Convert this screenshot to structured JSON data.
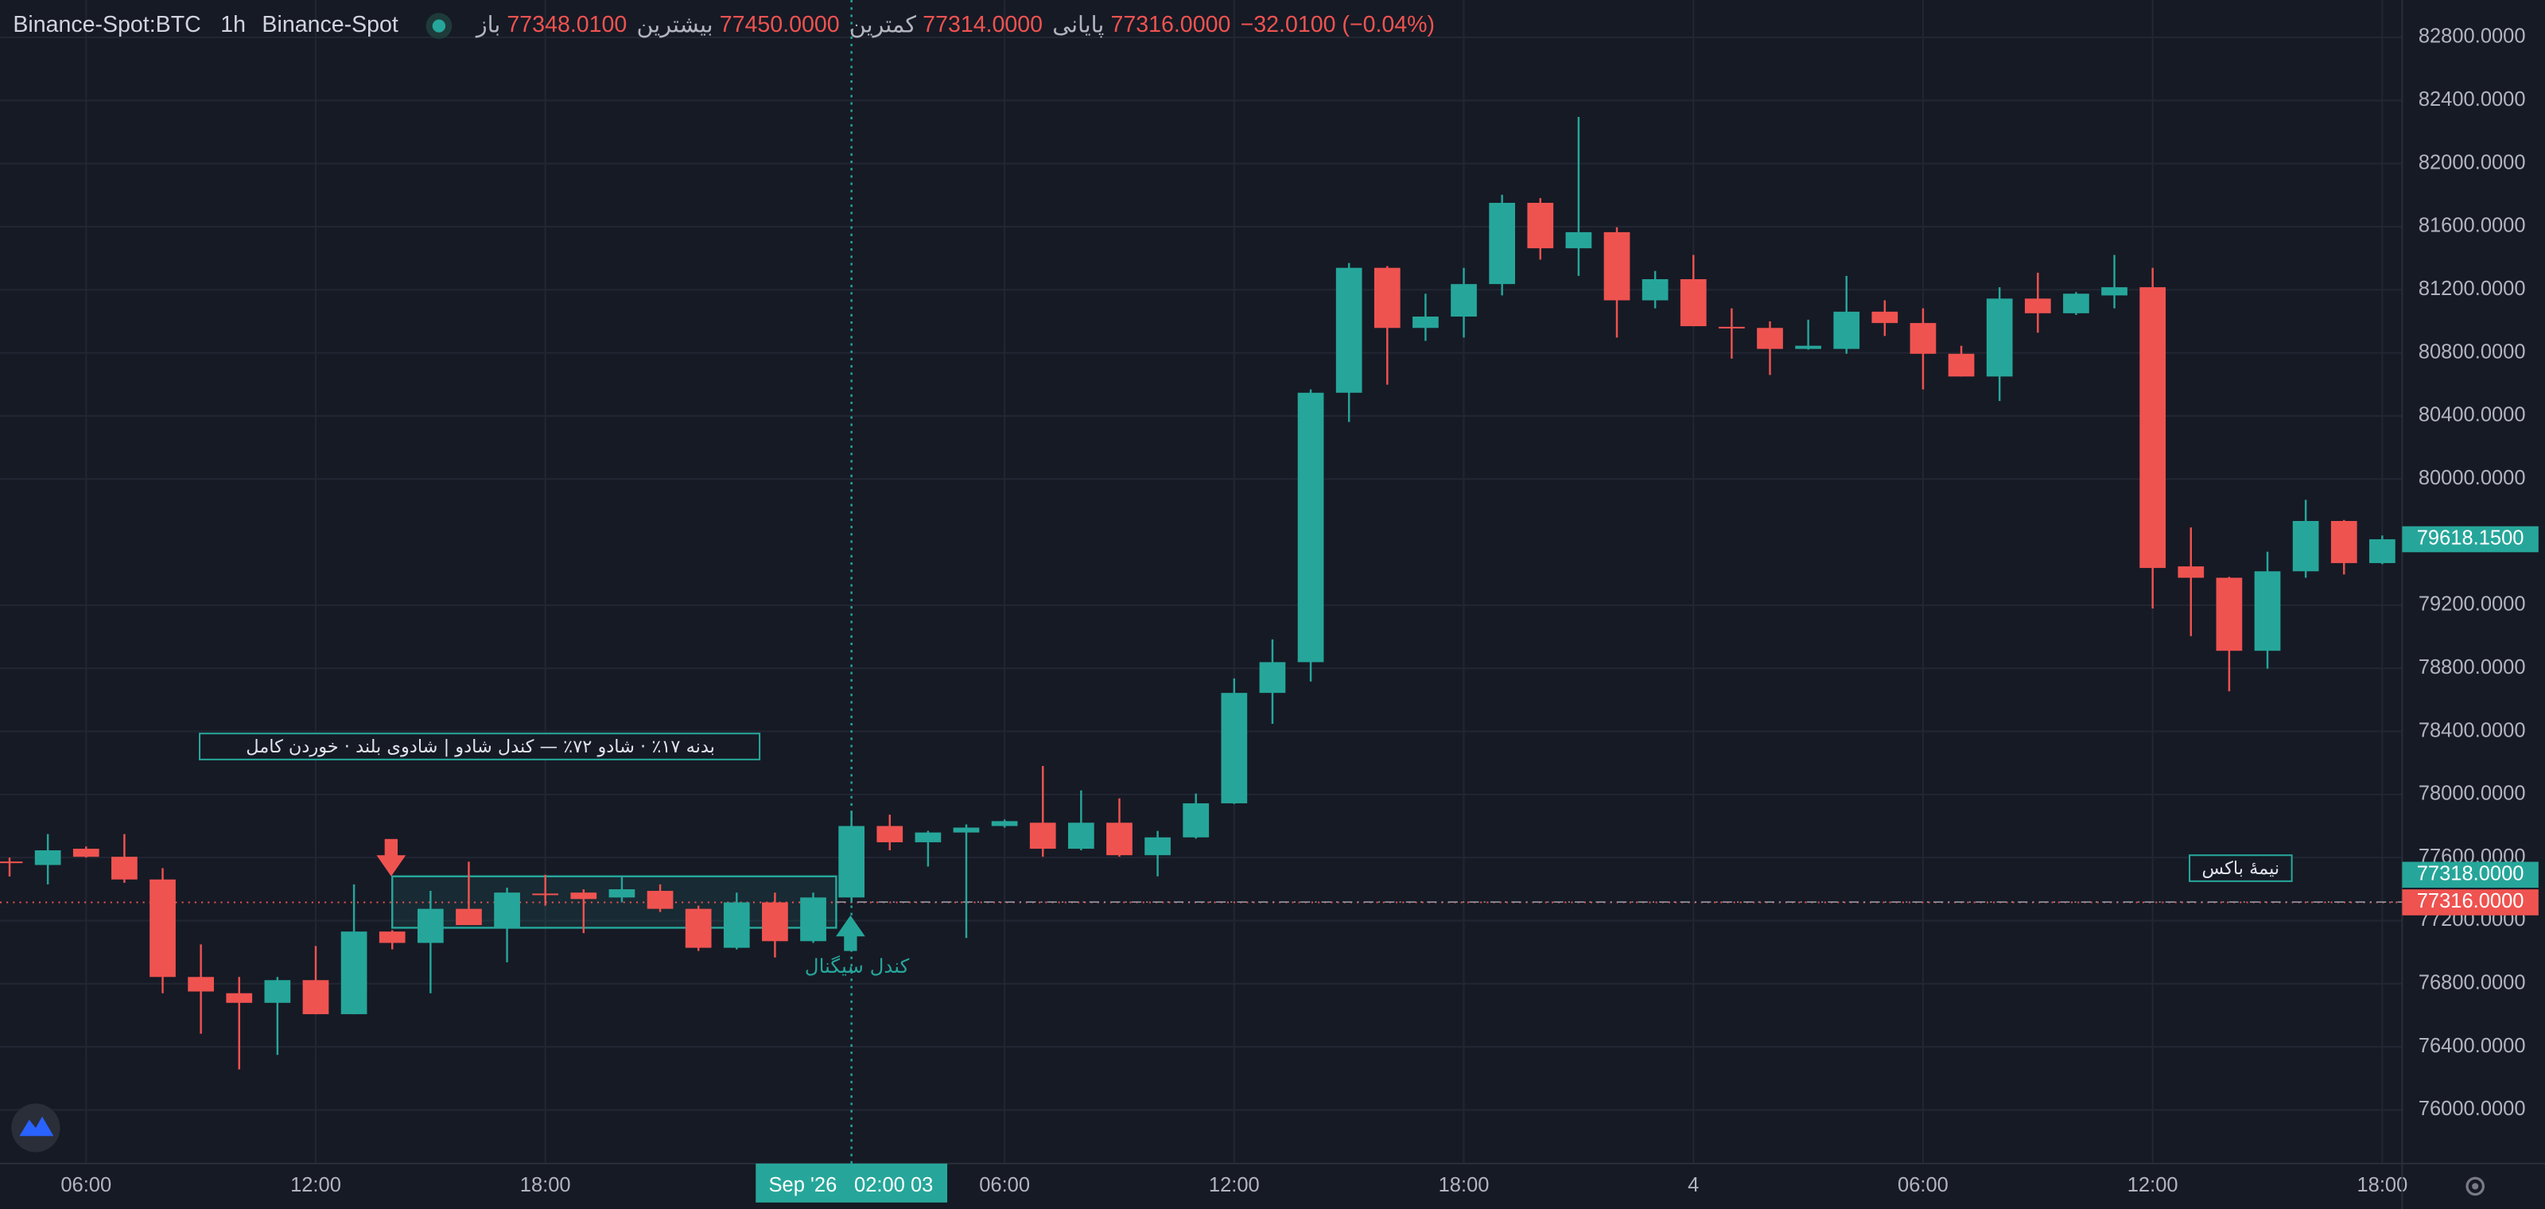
{
  "chart_data": {
    "type": "candlestick",
    "legend": {
      "symbol": "Binance-Spot:BTC",
      "interval": "1h",
      "exchange": "Binance-Spot",
      "items": [
        {
          "label": "باز",
          "value": "77348.0100"
        },
        {
          "label": "بیشترین",
          "value": "77450.0000"
        },
        {
          "label": "کمترین",
          "value": "77314.0000"
        },
        {
          "label": "پایانی",
          "value": "77316.0000"
        }
      ],
      "change": "−32.0100 (−0.04%)",
      "value_color": "#ef5350"
    },
    "up_color": "#26a69a",
    "down_color": "#ef5350",
    "x": [
      -2,
      -1,
      0,
      1,
      2,
      3,
      4,
      5,
      6,
      7,
      8,
      9,
      10,
      11,
      12,
      13,
      14,
      15,
      16,
      17,
      18,
      19,
      20,
      21,
      22,
      23,
      24,
      25,
      26,
      27,
      28,
      29,
      30,
      31,
      32,
      33,
      34,
      35,
      36,
      37,
      38,
      39,
      40,
      41,
      42,
      43,
      44,
      45,
      46,
      47,
      48,
      49,
      50,
      51,
      52,
      53,
      54,
      55,
      56,
      57,
      58,
      59,
      60
    ],
    "open": [
      77575,
      77553,
      77656,
      77605,
      77461,
      76843,
      76740,
      76679,
      76823,
      76607,
      77131,
      77059,
      77275,
      77152,
      77372,
      77378,
      77347,
      77389,
      77275,
      77028,
      77316,
      77070,
      77347,
      77800,
      77697,
      77759,
      77800,
      77821,
      77656,
      77821,
      77615,
      77728,
      77944,
      78644,
      78839,
      80547,
      81339,
      80958,
      81030,
      81236,
      81751,
      81463,
      81565,
      81133,
      81267,
      80965,
      80958,
      80825,
      80825,
      81061,
      80989,
      80794,
      80650,
      81144,
      81051,
      81164,
      81216,
      79446,
      79374,
      78911,
      79415,
      79734,
      79467
    ],
    "high": [
      77600,
      77749,
      77670,
      77749,
      77533,
      77049,
      76843,
      76843,
      77039,
      77430,
      77140,
      77389,
      77574,
      77409,
      77491,
      77399,
      77481,
      77430,
      77295,
      77378,
      77378,
      77378,
      77893,
      77872,
      77770,
      77810,
      77841,
      78181,
      78026,
      77975,
      77769,
      78006,
      78736,
      78983,
      80568,
      81370,
      81350,
      81175,
      81339,
      81802,
      81781,
      82296,
      81596,
      81319,
      81421,
      81082,
      81000,
      81010,
      81288,
      81133,
      81082,
      80845,
      81216,
      81308,
      81185,
      81421,
      81339,
      79693,
      79380,
      79539,
      79868,
      79740,
      79642
    ],
    "low": [
      77480,
      77430,
      77600,
      77440,
      76740,
      76483,
      76257,
      76349,
      76607,
      76607,
      77018,
      76740,
      77172,
      76936,
      77295,
      77121,
      77316,
      77255,
      77008,
      77018,
      76967,
      77059,
      77316,
      77646,
      77543,
      77090,
      77790,
      77605,
      77646,
      77605,
      77481,
      77720,
      77940,
      78448,
      78716,
      80362,
      80598,
      80876,
      80897,
      81164,
      81391,
      81288,
      80897,
      81082,
      80969,
      80763,
      80660,
      80820,
      80794,
      80907,
      80568,
      80650,
      80495,
      80928,
      81040,
      81082,
      79179,
      79004,
      78654,
      78798,
      79374,
      79395,
      79460
    ],
    "close": [
      77570,
      77646,
      77605,
      77461,
      76843,
      76751,
      76679,
      76823,
      76607,
      77131,
      77059,
      77275,
      77172,
      77378,
      77362,
      77337,
      77399,
      77275,
      77028,
      77316,
      77070,
      77347,
      77800,
      77697,
      77759,
      77790,
      77831,
      77656,
      77821,
      77615,
      77728,
      77944,
      78644,
      78839,
      80547,
      81339,
      80958,
      81030,
      81236,
      81751,
      81463,
      81565,
      81133,
      81267,
      80969,
      80958,
      80825,
      80845,
      81061,
      80989,
      80794,
      80650,
      81144,
      81051,
      81175,
      81216,
      79436,
      79374,
      78911,
      79415,
      79734,
      79467,
      79618.15
    ],
    "xlim": [
      -2.25,
      60.52
    ],
    "ylim": [
      75660,
      83037
    ],
    "xticks": [
      {
        "value": 0,
        "label": "06:00"
      },
      {
        "value": 6,
        "label": "12:00"
      },
      {
        "value": 12,
        "label": "18:00"
      },
      {
        "value": 24,
        "label": "06:00"
      },
      {
        "value": 30,
        "label": "12:00"
      },
      {
        "value": 36,
        "label": "18:00"
      },
      {
        "value": 42,
        "label": "4"
      },
      {
        "value": 48,
        "label": "06:00"
      },
      {
        "value": 54,
        "label": "12:00"
      },
      {
        "value": 60,
        "label": "18:00"
      }
    ],
    "yticks": [
      {
        "value": 76000,
        "label": "76000.0000"
      },
      {
        "value": 76400,
        "label": "76400.0000"
      },
      {
        "value": 76800,
        "label": "76800.0000"
      },
      {
        "value": 77200,
        "label": "77200.0000"
      },
      {
        "value": 77600,
        "label": "77600.0000"
      },
      {
        "value": 78000,
        "label": "78000.0000"
      },
      {
        "value": 78400,
        "label": "78400.0000"
      },
      {
        "value": 78800,
        "label": "78800.0000"
      },
      {
        "value": 79200,
        "label": "79200.0000"
      },
      {
        "value": 80000,
        "label": "80000.0000"
      },
      {
        "value": 80400,
        "label": "80400.0000"
      },
      {
        "value": 80800,
        "label": "80800.0000"
      },
      {
        "value": 81200,
        "label": "81200.0000"
      },
      {
        "value": 81600,
        "label": "81600.0000"
      },
      {
        "value": 82000,
        "label": "82000.0000"
      },
      {
        "value": 82400,
        "label": "82400.0000"
      },
      {
        "value": 82800,
        "label": "82800.0000"
      }
    ],
    "grid": true,
    "price_labels": [
      {
        "value": 79618.15,
        "label": "79618.1500",
        "color": "#26a69a"
      },
      {
        "value": 77316,
        "label": "77316.0000",
        "color": "#ef5350"
      },
      {
        "value": 77318,
        "label": "77318.0000",
        "color": "#26a69a"
      }
    ],
    "crosshair": {
      "x": 20,
      "date": "Sep '26",
      "time": "02:00 03"
    },
    "box": {
      "x": [
        8,
        19.6
      ],
      "y": [
        77155,
        77481
      ]
    },
    "annotations": {
      "note": "بدنه ۱۷٪ · شادو ۷۲٪ — کندل شادو | شادوی بلند · خوردن کامل",
      "signal_candle": "کندل سیگنال",
      "half_box": "نیمهٔ باکس"
    }
  }
}
